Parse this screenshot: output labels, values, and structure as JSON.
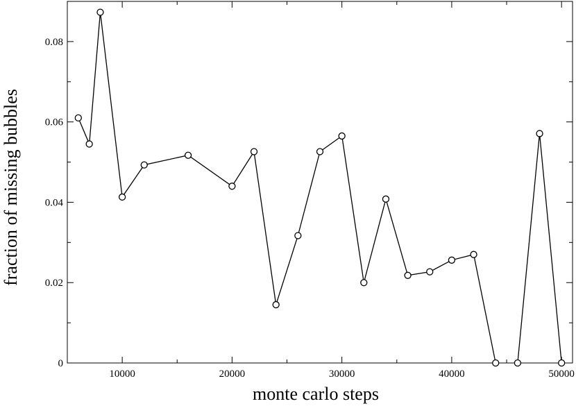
{
  "chart_data": {
    "type": "line",
    "title": "",
    "xlabel": "monte carlo steps",
    "ylabel": "fraction of missing bubbles",
    "xlim": [
      5000,
      51000
    ],
    "ylim": [
      0,
      0.09
    ],
    "x_ticks": [
      10000,
      20000,
      30000,
      40000,
      50000
    ],
    "x_tick_labels": [
      "10000",
      "20000",
      "30000",
      "40000",
      "50000"
    ],
    "y_ticks": [
      0,
      0.02,
      0.04,
      0.06,
      0.08
    ],
    "y_tick_labels": [
      "0",
      "0.02",
      "0.04",
      "0.06",
      "0.08"
    ],
    "grid": false,
    "legend": "none",
    "marker": "open-circle",
    "colors": {
      "line": "#000000",
      "marker_stroke": "#000000",
      "marker_fill": "#ffffff"
    },
    "series": [
      {
        "segments": [
          {
            "x": [
              6000,
              7000,
              8000,
              10000,
              12000,
              16000,
              20000,
              22000,
              24000,
              26000,
              28000,
              30000,
              32000,
              34000,
              36000,
              38000,
              40000,
              42000,
              44000
            ],
            "y": [
              0.061,
              0.0545,
              0.0873,
              0.0413,
              0.0493,
              0.0517,
              0.044,
              0.0526,
              0.0145,
              0.0317,
              0.0526,
              0.0565,
              0.02,
              0.0408,
              0.0218,
              0.0227,
              0.0256,
              0.027,
              0.0
            ]
          },
          {
            "x": [
              46000,
              48000,
              50000
            ],
            "y": [
              0.0,
              0.0571,
              0.0
            ]
          }
        ]
      }
    ]
  }
}
